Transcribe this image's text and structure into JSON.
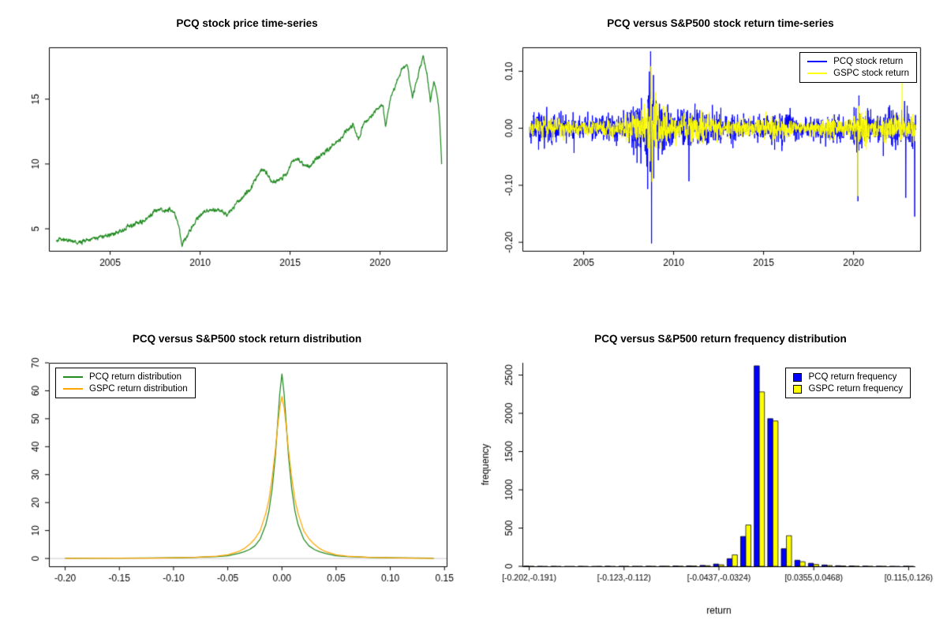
{
  "page": {
    "background": "#ffffff"
  },
  "colors": {
    "pcq_blue": "#0000ff",
    "gspc_yellow": "#ffff00",
    "pcq_green": "#228b22",
    "gspc_orange": "#ffa500"
  },
  "chart_data": [
    {
      "type": "line",
      "title": "PCQ stock price time-series",
      "xlabel": "",
      "ylabel": "",
      "xlim": [
        2001.6,
        2023.7
      ],
      "ylim": [
        3.3,
        19.0
      ],
      "xticks": [
        2005,
        2010,
        2015,
        2020
      ],
      "yticks": [
        5,
        10,
        15
      ],
      "box": true,
      "series": [
        {
          "name": "PCQ adjusted close price",
          "color": "#228b22",
          "seed": 42,
          "jitter": 0.07,
          "keypoints_x": [
            2002.0,
            2002.4,
            2002.8,
            2003.2,
            2003.6,
            2004.0,
            2004.4,
            2004.8,
            2005.2,
            2005.6,
            2006.0,
            2006.4,
            2006.8,
            2007.2,
            2007.5,
            2007.8,
            2008.0,
            2008.3,
            2008.55,
            2008.8,
            2009.0,
            2009.2,
            2009.5,
            2009.8,
            2010.1,
            2010.4,
            2010.8,
            2011.1,
            2011.5,
            2011.8,
            2012.1,
            2012.5,
            2012.8,
            2013.1,
            2013.4,
            2013.7,
            2014.0,
            2014.4,
            2014.8,
            2015.1,
            2015.4,
            2015.8,
            2016.1,
            2016.5,
            2016.9,
            2017.3,
            2017.7,
            2018.1,
            2018.5,
            2018.8,
            2019.1,
            2019.5,
            2019.9,
            2020.15,
            2020.3,
            2020.6,
            2020.9,
            2021.2,
            2021.5,
            2021.8,
            2022.0,
            2022.2,
            2022.4,
            2022.6,
            2022.8,
            2023.0,
            2023.15,
            2023.3,
            2023.42
          ],
          "keypoints_y": [
            4.2,
            4.15,
            4.05,
            3.95,
            4.1,
            4.25,
            4.35,
            4.5,
            4.65,
            4.85,
            5.1,
            5.35,
            5.6,
            6.0,
            6.4,
            6.55,
            6.3,
            6.5,
            6.35,
            5.3,
            3.75,
            4.3,
            5.0,
            5.7,
            6.15,
            6.35,
            6.45,
            6.5,
            6.05,
            6.6,
            7.1,
            7.6,
            8.0,
            8.9,
            9.6,
            9.3,
            8.5,
            8.8,
            9.3,
            10.1,
            10.45,
            9.9,
            9.75,
            10.5,
            10.9,
            11.3,
            11.8,
            12.5,
            13.0,
            11.95,
            13.1,
            13.7,
            14.3,
            14.55,
            12.85,
            15.2,
            16.2,
            17.2,
            17.65,
            15.1,
            16.2,
            17.4,
            18.3,
            17.0,
            14.8,
            16.4,
            15.6,
            13.8,
            10.0
          ]
        }
      ]
    },
    {
      "type": "noise-line",
      "title": "PCQ versus S&P500 stock return time-series",
      "xlabel": "",
      "ylabel": "",
      "xlim": [
        2001.6,
        2023.7
      ],
      "ylim": [
        -0.215,
        0.142
      ],
      "xticks": [
        2005,
        2010,
        2015,
        2020
      ],
      "yticks": [
        -0.2,
        -0.1,
        0,
        0.1
      ],
      "ytick_labels": [
        "-0.20",
        "-0.10",
        "0.00",
        "0.10"
      ],
      "box": true,
      "legend": {
        "position": "topright",
        "items": [
          {
            "label": "PCQ stock return",
            "color": "#0000ff"
          },
          {
            "label": "GSPC stock return",
            "color": "#ffff00"
          }
        ]
      },
      "series": [
        {
          "name": "PCQ stock return",
          "color": "#0000ff",
          "seed": 7,
          "n": 1600,
          "range": [
            2002.0,
            2023.45
          ],
          "vol_x": [
            2002,
            2003.5,
            2005,
            2007,
            2008.2,
            2008.8,
            2009.4,
            2010,
            2010.9,
            2011.6,
            2012.5,
            2014,
            2015.6,
            2016.2,
            2017,
            2018,
            2018.9,
            2019.5,
            2020.0,
            2020.3,
            2021,
            2022,
            2022.8,
            2023.4
          ],
          "vol": [
            0.016,
            0.013,
            0.01,
            0.012,
            0.028,
            0.05,
            0.028,
            0.016,
            0.02,
            0.02,
            0.013,
            0.011,
            0.014,
            0.015,
            0.008,
            0.011,
            0.016,
            0.01,
            0.013,
            0.028,
            0.012,
            0.017,
            0.02,
            0.018
          ],
          "spikes": [
            [
              2008.72,
              0.135
            ],
            [
              2008.78,
              -0.202
            ],
            [
              2008.9,
              -0.088
            ],
            [
              2010.85,
              -0.093
            ],
            [
              2020.25,
              -0.128
            ],
            [
              2022.9,
              -0.122
            ],
            [
              2023.4,
              -0.155
            ]
          ]
        },
        {
          "name": "GSPC stock return",
          "color": "#ffff00",
          "seed": 13,
          "n": 1600,
          "range": [
            2002.0,
            2023.45
          ],
          "vol_x": [
            2002,
            2003.5,
            2005,
            2007,
            2008.2,
            2008.8,
            2009.4,
            2010,
            2010.9,
            2011.6,
            2012.5,
            2014,
            2015.6,
            2016.2,
            2017,
            2018,
            2018.9,
            2019.5,
            2020.0,
            2020.3,
            2021,
            2022,
            2022.8,
            2023.4
          ],
          "vol": [
            0.01,
            0.008,
            0.006,
            0.008,
            0.018,
            0.032,
            0.018,
            0.01,
            0.012,
            0.014,
            0.008,
            0.007,
            0.009,
            0.01,
            0.004,
            0.007,
            0.01,
            0.006,
            0.008,
            0.024,
            0.007,
            0.011,
            0.013,
            0.01
          ],
          "spikes": [
            [
              2008.75,
              0.109
            ],
            [
              2008.8,
              -0.094
            ],
            [
              2020.25,
              -0.119
            ],
            [
              2022.7,
              0.083
            ]
          ]
        }
      ]
    },
    {
      "type": "line",
      "title": "PCQ versus S&P500 stock return distribution",
      "xlabel": "",
      "ylabel": "",
      "xlim": [
        -0.215,
        0.152
      ],
      "ylim": [
        -2.8,
        70
      ],
      "xticks": [
        -0.2,
        -0.15,
        -0.1,
        -0.05,
        0,
        0.05,
        0.1,
        0.15
      ],
      "xtick_labels": [
        "-0.20",
        "-0.15",
        "-0.10",
        "-0.05",
        "0.00",
        "0.05",
        "0.10",
        "0.15"
      ],
      "yticks": [
        0,
        10,
        20,
        30,
        40,
        50,
        60,
        70
      ],
      "box": true,
      "baseline": {
        "y": 0,
        "color": "#c8c8c8"
      },
      "legend": {
        "position": "topleft",
        "items": [
          {
            "label": "PCQ return distribution",
            "color": "#228b22"
          },
          {
            "label": "GSPC return distribution",
            "color": "#ffa500"
          }
        ]
      },
      "series": [
        {
          "name": "PCQ return distribution",
          "color": "#228b22",
          "x": [
            -0.2,
            -0.15,
            -0.12,
            -0.1,
            -0.08,
            -0.06,
            -0.05,
            -0.04,
            -0.035,
            -0.03,
            -0.025,
            -0.02,
            -0.015,
            -0.012,
            -0.009,
            -0.006,
            -0.004,
            -0.002,
            0,
            0.002,
            0.004,
            0.006,
            0.009,
            0.012,
            0.015,
            0.02,
            0.025,
            0.03,
            0.035,
            0.04,
            0.05,
            0.06,
            0.08,
            0.1,
            0.12,
            0.14
          ],
          "y": [
            0.1,
            0.15,
            0.2,
            0.3,
            0.4,
            0.7,
            1.0,
            1.8,
            2.4,
            3.2,
            4.5,
            7,
            12,
            17,
            25,
            37,
            48,
            59,
            66,
            59,
            48,
            37,
            25,
            17,
            12,
            7,
            4.5,
            3.2,
            2.4,
            1.8,
            1.0,
            0.7,
            0.4,
            0.3,
            0.2,
            0.1
          ]
        },
        {
          "name": "GSPC return distribution",
          "color": "#ffa500",
          "x": [
            -0.2,
            -0.15,
            -0.12,
            -0.1,
            -0.08,
            -0.06,
            -0.05,
            -0.04,
            -0.035,
            -0.03,
            -0.025,
            -0.02,
            -0.015,
            -0.012,
            -0.009,
            -0.006,
            -0.004,
            -0.002,
            0,
            0.002,
            0.004,
            0.006,
            0.009,
            0.012,
            0.015,
            0.02,
            0.025,
            0.03,
            0.035,
            0.04,
            0.05,
            0.06,
            0.08,
            0.1,
            0.12,
            0.14
          ],
          "y": [
            0.05,
            0.1,
            0.15,
            0.25,
            0.4,
            0.8,
            1.3,
            2.5,
            3.5,
            5,
            7,
            10,
            16,
            21,
            29,
            39,
            47,
            54,
            58,
            54,
            47,
            39,
            29,
            21,
            16,
            10,
            7,
            5,
            3.5,
            2.5,
            1.3,
            0.8,
            0.4,
            0.25,
            0.15,
            0.05
          ]
        }
      ]
    },
    {
      "type": "grouped-bar",
      "title": "PCQ versus S&P500 return frequency distribution",
      "xlabel": "return",
      "ylabel": "frequency",
      "ylim": [
        0,
        2660
      ],
      "yticks": [
        0,
        500,
        1000,
        1500,
        2000,
        2500
      ],
      "bins": 29,
      "xtick_bins": [
        0,
        7,
        14,
        21,
        28
      ],
      "xtick_labels": [
        "[-0.202,-0.191)",
        "[-0.123,-0.112)",
        "[-0.0437,-0.0324)",
        "[0.0355,0.0468)",
        "[0.115,0.126)"
      ],
      "margins": {
        "r": 40
      },
      "legend": {
        "position": "topright",
        "items": [
          {
            "label": "PCQ return frequency",
            "color": "#0000ff"
          },
          {
            "label": "GSPC return frequency",
            "color": "#ffff00"
          }
        ]
      },
      "series": [
        {
          "name": "PCQ return frequency",
          "color": "#0000ff",
          "values": [
            3,
            1,
            1,
            0,
            1,
            0,
            2,
            1,
            1,
            2,
            2,
            4,
            6,
            12,
            30,
            100,
            390,
            2620,
            1930,
            230,
            80,
            40,
            18,
            8,
            5,
            3,
            2,
            1,
            2
          ]
        },
        {
          "name": "GSPC return frequency",
          "color": "#ffff00",
          "values": [
            1,
            0,
            0,
            0,
            0,
            1,
            0,
            1,
            1,
            1,
            2,
            2,
            4,
            8,
            20,
            150,
            540,
            2280,
            1900,
            400,
            60,
            25,
            10,
            5,
            2,
            1,
            1,
            0,
            1
          ]
        }
      ]
    }
  ]
}
